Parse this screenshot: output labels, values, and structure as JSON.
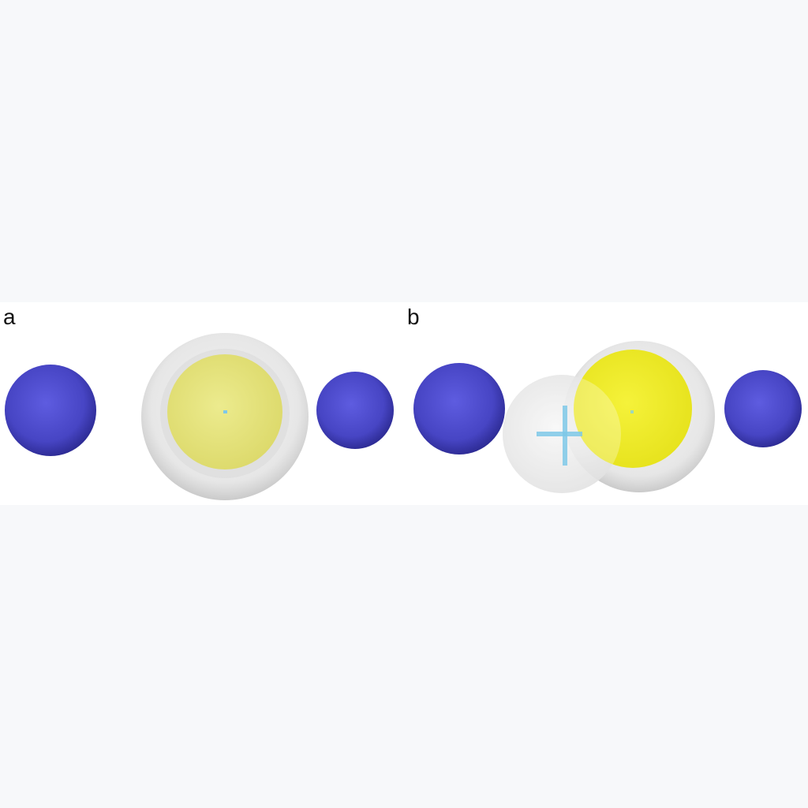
{
  "figure": {
    "panels": [
      {
        "label": "a",
        "description_type": "centered"
      },
      {
        "label": "b",
        "description_type": "displaced"
      }
    ]
  },
  "colors": {
    "blue_sphere": "#4a48c8",
    "blue_sphere_dark": "#2a2890",
    "yellow_sphere_a": "#e6e47a",
    "yellow_sphere_b": "#f2ee2a",
    "halo": "#c8c8c8",
    "marker": "#7ec8e8",
    "background": "#f7f8fa",
    "panel_bg": "#ffffff"
  },
  "icons": {
    "center_marker": "crosshair-icon"
  }
}
